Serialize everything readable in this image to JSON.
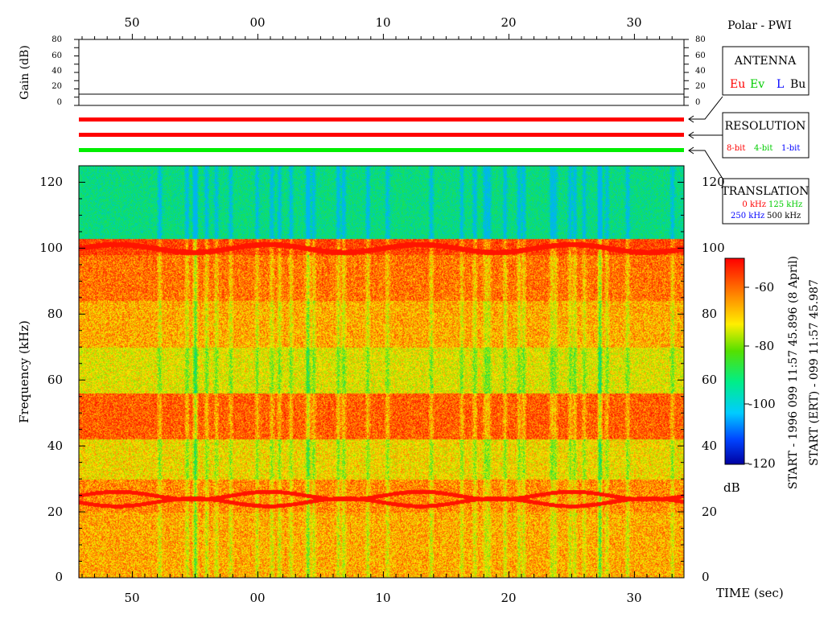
{
  "header": {
    "title": "Polar - PWI"
  },
  "axes": {
    "time_ticks": [
      "50",
      "00",
      "10",
      "20",
      "30"
    ],
    "time_label": "TIME (sec)",
    "gain_label": "Gain (dB)",
    "gain_ticks": [
      "80",
      "60",
      "40",
      "20",
      "0"
    ],
    "freq_label": "Frequency (kHz)",
    "freq_ticks": [
      "120",
      "100",
      "80",
      "60",
      "40",
      "20",
      "0"
    ]
  },
  "legend_antenna": {
    "title": "ANTENNA",
    "items": [
      {
        "text": "Eu",
        "color": "#ff0000"
      },
      {
        "text": "Ev",
        "color": "#00cc00"
      },
      {
        "text": "L",
        "color": "#0000ff"
      },
      {
        "text": "Bu",
        "color": "#000000"
      }
    ]
  },
  "legend_resolution": {
    "title": "RESOLUTION",
    "items": [
      {
        "text": "8-bit",
        "color": "#ff0000"
      },
      {
        "text": "4-bit",
        "color": "#00cc00"
      },
      {
        "text": "1-bit",
        "color": "#0000ff"
      }
    ]
  },
  "legend_translation": {
    "title": "TRANSLATION",
    "row1": [
      {
        "text": "0 kHz",
        "color": "#ff0000"
      },
      {
        "text": "125 kHz",
        "color": "#00cc00"
      }
    ],
    "row2": [
      {
        "text": "250 kHz",
        "color": "#0000ff"
      },
      {
        "text": "500 kHz",
        "color": "#000000"
      }
    ]
  },
  "colorbar": {
    "unit": "dB",
    "ticks": [
      "-60",
      "-80",
      "-100",
      "-120"
    ]
  },
  "start_info": {
    "line1": "START - 1996 099 11:57 45.896 (8 April)",
    "line2": "START (ERT) - 099 11:57 45.987"
  },
  "chart_data": [
    {
      "type": "line",
      "title": "",
      "ylabel": "Gain (dB)",
      "ylim": [
        0,
        80
      ],
      "x_tick_labels": [
        "50",
        "00",
        "10",
        "20",
        "30"
      ],
      "series": [
        {
          "values": [
            12,
            12
          ]
        }
      ]
    },
    {
      "type": "heatmap",
      "xlabel": "TIME (sec)",
      "ylabel": "Frequency (kHz)",
      "ylim": [
        0,
        125
      ],
      "x_tick_labels": [
        "50",
        "00",
        "10",
        "20",
        "30"
      ],
      "y_ticks": [
        0,
        20,
        40,
        60,
        80,
        100,
        120
      ],
      "colorbar_range_db": [
        -120,
        -50
      ],
      "colorbar_ticks": [
        -60,
        -80,
        -100,
        -120
      ],
      "status_bars": [
        {
          "color": "#ff0000"
        },
        {
          "color": "#ff0000"
        },
        {
          "color": "#00ee00"
        }
      ]
    }
  ]
}
